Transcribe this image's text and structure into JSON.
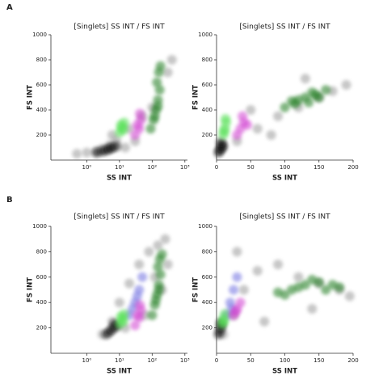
{
  "panel_labels": [
    "A",
    "B"
  ],
  "chart_data": [
    {
      "type": "scatter",
      "title": "[Singlets] SS INT / FS INT",
      "x_label": "SS INT",
      "y_label": "FS INT",
      "log_x": true,
      "xlim": [
        0.08,
        1200
      ],
      "ylim": [
        0,
        1000
      ],
      "xticks": [
        {
          "value": 1,
          "label": "10⁰"
        },
        {
          "value": 10,
          "label": "10¹"
        },
        {
          "value": 100,
          "label": "10²"
        },
        {
          "value": 1000,
          "label": "10³"
        }
      ],
      "yticks": [
        200,
        400,
        600,
        800,
        1000
      ],
      "series": [
        {
          "color": "#9a9a9a",
          "x": [
            0.5,
            1,
            2,
            3,
            5,
            8,
            20,
            50,
            100,
            300,
            400,
            30,
            15,
            6
          ],
          "y": [
            50,
            60,
            70,
            90,
            120,
            160,
            250,
            350,
            420,
            700,
            800,
            150,
            100,
            200
          ]
        },
        {
          "color": "#111111",
          "x": [
            2,
            3,
            4,
            5,
            6,
            8
          ],
          "y": [
            60,
            70,
            80,
            90,
            100,
            110
          ]
        },
        {
          "color": "#55e055",
          "x": [
            10,
            12,
            14,
            11,
            13
          ],
          "y": [
            220,
            260,
            300,
            280,
            240
          ]
        },
        {
          "color": "#d040d0",
          "x": [
            30,
            40,
            45,
            35,
            42
          ],
          "y": [
            200,
            250,
            320,
            280,
            370
          ]
        },
        {
          "color": "#1e7a1e",
          "x": [
            90,
            110,
            130,
            150,
            170,
            140,
            160,
            180,
            120,
            150
          ],
          "y": [
            250,
            320,
            400,
            480,
            560,
            620,
            700,
            750,
            350,
            430
          ]
        }
      ]
    },
    {
      "type": "scatter",
      "title": "[Singlets] SS INT / FS INT",
      "x_label": "SS INT",
      "y_label": "FS INT",
      "log_x": false,
      "xlim": [
        0,
        200
      ],
      "ylim": [
        0,
        1000
      ],
      "xticks": [
        0,
        50,
        100,
        150,
        200
      ],
      "yticks": [
        200,
        400,
        600,
        800,
        1000
      ],
      "series": [
        {
          "color": "#9a9a9a",
          "x": [
            10,
            30,
            60,
            90,
            120,
            150,
            170,
            190,
            80,
            50,
            130
          ],
          "y": [
            100,
            150,
            250,
            350,
            420,
            500,
            550,
            600,
            200,
            400,
            650
          ]
        },
        {
          "color": "#111111",
          "x": [
            3,
            5,
            7,
            9,
            6
          ],
          "y": [
            60,
            80,
            100,
            120,
            140
          ]
        },
        {
          "color": "#55e055",
          "x": [
            10,
            12,
            14,
            13,
            11
          ],
          "y": [
            200,
            250,
            300,
            330,
            230
          ]
        },
        {
          "color": "#d040d0",
          "x": [
            30,
            35,
            40,
            38,
            45
          ],
          "y": [
            200,
            250,
            300,
            350,
            280
          ]
        },
        {
          "color": "#1e7a1e",
          "x": [
            100,
            115,
            130,
            145,
            160,
            120,
            140,
            110,
            150,
            135
          ],
          "y": [
            420,
            450,
            500,
            520,
            560,
            480,
            540,
            470,
            500,
            460
          ]
        }
      ]
    },
    {
      "type": "scatter",
      "title": "[Singlets] SS INT / FS INT",
      "x_label": "SS INT",
      "y_label": "FS INT",
      "log_x": true,
      "xlim": [
        0.08,
        1200
      ],
      "ylim": [
        0,
        1000
      ],
      "xticks": [
        {
          "value": 1,
          "label": "10⁰"
        },
        {
          "value": 10,
          "label": "10¹"
        },
        {
          "value": 100,
          "label": "10²"
        },
        {
          "value": 1000,
          "label": "10³"
        }
      ],
      "yticks": [
        200,
        400,
        600,
        800,
        1000
      ],
      "series": [
        {
          "color": "#9a9a9a",
          "x": [
            3,
            6,
            10,
            20,
            40,
            80,
            150,
            250,
            300,
            60,
            15,
            120,
            200
          ],
          "y": [
            150,
            250,
            400,
            550,
            700,
            800,
            850,
            900,
            700,
            300,
            200,
            600,
            500
          ]
        },
        {
          "color": "#111111",
          "x": [
            4,
            5,
            6,
            8,
            7
          ],
          "y": [
            150,
            170,
            190,
            210,
            230
          ]
        },
        {
          "color": "#7070e0",
          "x": [
            20,
            30,
            40,
            25,
            50,
            35
          ],
          "y": [
            300,
            400,
            500,
            350,
            600,
            450
          ]
        },
        {
          "color": "#55e055",
          "x": [
            10,
            12,
            14,
            11,
            13
          ],
          "y": [
            230,
            270,
            310,
            290,
            250
          ]
        },
        {
          "color": "#d040d0",
          "x": [
            30,
            40,
            45,
            35,
            42
          ],
          "y": [
            220,
            280,
            340,
            300,
            380
          ]
        },
        {
          "color": "#1e7a1e",
          "x": [
            100,
            120,
            140,
            160,
            180,
            150,
            170,
            200,
            130,
            160
          ],
          "y": [
            300,
            380,
            460,
            540,
            620,
            680,
            740,
            780,
            420,
            500
          ]
        }
      ]
    },
    {
      "type": "scatter",
      "title": "[Singlets] SS INT / FS INT",
      "x_label": "SS INT",
      "y_label": "FS INT",
      "log_x": false,
      "xlim": [
        0,
        200
      ],
      "ylim": [
        0,
        1000
      ],
      "xticks": [
        0,
        50,
        100,
        150,
        200
      ],
      "yticks": [
        200,
        400,
        600,
        800,
        1000
      ],
      "series": [
        {
          "color": "#9a9a9a",
          "x": [
            10,
            25,
            40,
            60,
            90,
            120,
            150,
            180,
            195,
            70,
            30,
            140
          ],
          "y": [
            150,
            300,
            500,
            650,
            700,
            600,
            550,
            500,
            450,
            250,
            800,
            350
          ]
        },
        {
          "color": "#111111",
          "x": [
            3,
            5,
            7,
            6
          ],
          "y": [
            150,
            180,
            210,
            240
          ]
        },
        {
          "color": "#7070e0",
          "x": [
            15,
            20,
            25,
            30,
            22
          ],
          "y": [
            300,
            400,
            500,
            600,
            350
          ]
        },
        {
          "color": "#55e055",
          "x": [
            8,
            10,
            12,
            11
          ],
          "y": [
            230,
            270,
            310,
            250
          ]
        },
        {
          "color": "#d040d0",
          "x": [
            25,
            30,
            35,
            28
          ],
          "y": [
            300,
            350,
            400,
            330
          ]
        },
        {
          "color": "#1e7a1e",
          "x": [
            90,
            110,
            130,
            150,
            170,
            120,
            140,
            160,
            100,
            180
          ],
          "y": [
            480,
            500,
            540,
            560,
            540,
            520,
            580,
            500,
            460,
            520
          ]
        }
      ]
    }
  ]
}
